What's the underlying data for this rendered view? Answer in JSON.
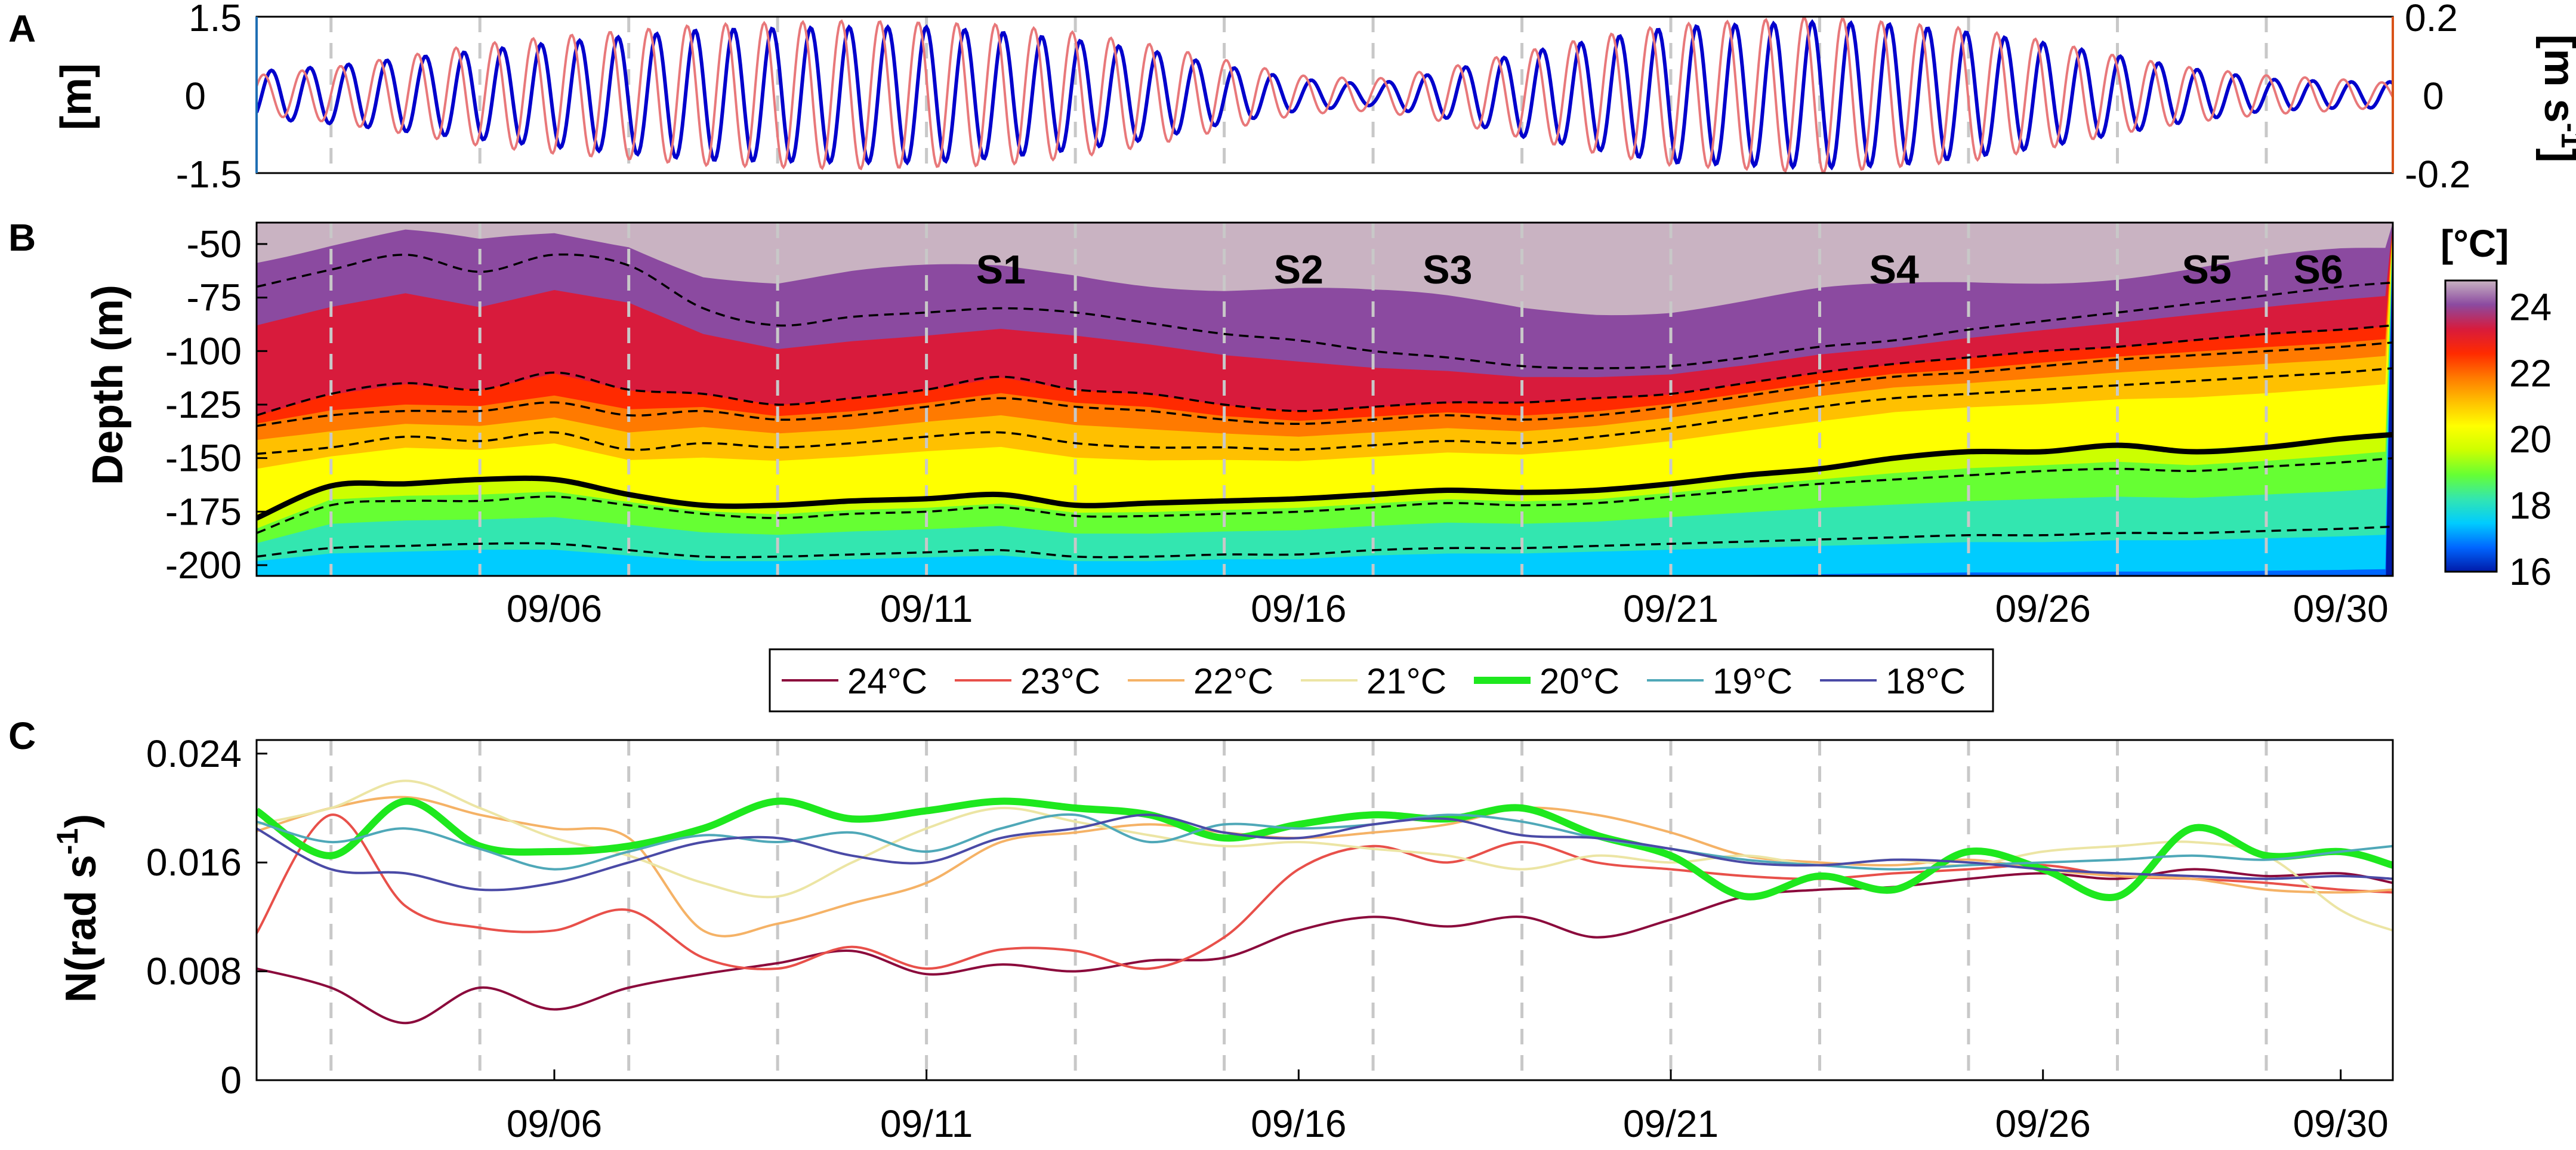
{
  "panels": {
    "a": "A",
    "b": "B",
    "c": "C"
  },
  "chart_data": [
    {
      "panel": "A",
      "type": "line",
      "y_left": {
        "label": "[m]",
        "ylim": [
          -1.5,
          1.5
        ],
        "ticks": [
          "1.5",
          "0",
          "-1.5"
        ],
        "color": "#1f6fb4"
      },
      "y_right": {
        "label": "[m s-1]",
        "label_main": "[m s",
        "label_sup": "-1",
        "label_end": "]",
        "ylim": [
          -0.2,
          0.2
        ],
        "ticks": [
          "0.2",
          "0",
          "-0.2"
        ],
        "color": "#d95319"
      },
      "xlim": [
        2,
        30.7
      ],
      "series": [
        {
          "axis": "left",
          "color": "#0000cc",
          "amplitude_envelope": [
            [
              2,
              0.45
            ],
            [
              3,
              0.55
            ],
            [
              4,
              0.7
            ],
            [
              5,
              0.85
            ],
            [
              6,
              1.0
            ],
            [
              8,
              1.25
            ],
            [
              10,
              1.3
            ],
            [
              11,
              1.3
            ],
            [
              12,
              1.2
            ],
            [
              13,
              1.05
            ],
            [
              14,
              0.85
            ],
            [
              15,
              0.55
            ],
            [
              16,
              0.3
            ],
            [
              17,
              0.2
            ],
            [
              18,
              0.45
            ],
            [
              19,
              0.8
            ],
            [
              20,
              1.05
            ],
            [
              21,
              1.3
            ],
            [
              23,
              1.4
            ],
            [
              24,
              1.35
            ],
            [
              25,
              1.2
            ],
            [
              26,
              1.0
            ],
            [
              27,
              0.75
            ],
            [
              28,
              0.5
            ],
            [
              29,
              0.3
            ],
            [
              30,
              0.25
            ],
            [
              30.7,
              0.25
            ]
          ]
        },
        {
          "axis": "right",
          "color": "#e8787a",
          "amplitude_envelope": [
            [
              2,
              0.05
            ],
            [
              3,
              0.07
            ],
            [
              4,
              0.1
            ],
            [
              5,
              0.13
            ],
            [
              6,
              0.15
            ],
            [
              8,
              0.18
            ],
            [
              10,
              0.19
            ],
            [
              12,
              0.18
            ],
            [
              13,
              0.16
            ],
            [
              14,
              0.13
            ],
            [
              15,
              0.09
            ],
            [
              16,
              0.05
            ],
            [
              17,
              0.04
            ],
            [
              18,
              0.07
            ],
            [
              19,
              0.11
            ],
            [
              20,
              0.15
            ],
            [
              21,
              0.18
            ],
            [
              23,
              0.2
            ],
            [
              25,
              0.17
            ],
            [
              26,
              0.14
            ],
            [
              27,
              0.1
            ],
            [
              28,
              0.07
            ],
            [
              29,
              0.05
            ],
            [
              30,
              0.04
            ],
            [
              30.7,
              0.03
            ]
          ]
        }
      ]
    },
    {
      "panel": "B",
      "type": "heatmap",
      "ylabel": "Depth (m)",
      "ylim": [
        -205,
        -40
      ],
      "yticks": [
        -50,
        -75,
        -100,
        -125,
        -150,
        -175,
        -200
      ],
      "xlim": [
        2,
        30.7
      ],
      "xticks": [
        {
          "day": 6,
          "label": "09/06"
        },
        {
          "day": 11,
          "label": "09/11"
        },
        {
          "day": 16,
          "label": "09/16"
        },
        {
          "day": 21,
          "label": "09/21"
        },
        {
          "day": 26,
          "label": "09/26"
        },
        {
          "day": 30,
          "label": "09/30"
        }
      ],
      "colorbar": {
        "title": "[°C]",
        "range": [
          16,
          24.8
        ],
        "ticks": [
          "24",
          "22",
          "20",
          "18",
          "16"
        ],
        "colors": [
          "#001aa8",
          "#0066ff",
          "#00ccff",
          "#33e6b0",
          "#66ff33",
          "#ccff00",
          "#ffff00",
          "#ffc000",
          "#ff7a00",
          "#ff2a00",
          "#d81b3c",
          "#8b4aa0",
          "#c9b3c2"
        ]
      },
      "isotherm_depths": {
        "days": [
          2,
          3,
          4,
          5,
          6,
          7,
          8,
          9,
          10,
          11,
          12,
          13,
          14,
          15,
          16,
          17,
          18,
          19,
          20,
          21,
          22,
          23,
          24,
          25,
          26,
          27,
          28,
          29,
          30,
          30.7
        ],
        "24": [
          -70,
          -62,
          -55,
          -63,
          -55,
          -60,
          -80,
          -88,
          -84,
          -82,
          -80,
          -82,
          -87,
          -92,
          -95,
          -100,
          -103,
          -107,
          -108,
          -107,
          -103,
          -98,
          -95,
          -90,
          -86,
          -82,
          -78,
          -74,
          -70,
          -68
        ],
        "23": [
          -130,
          -120,
          -115,
          -118,
          -110,
          -118,
          -120,
          -125,
          -122,
          -118,
          -112,
          -118,
          -120,
          -125,
          -128,
          -126,
          -124,
          -124,
          -122,
          -120,
          -115,
          -110,
          -106,
          -103,
          -100,
          -98,
          -95,
          -92,
          -90,
          -88
        ],
        "22": [
          -135,
          -130,
          -128,
          -128,
          -124,
          -130,
          -128,
          -132,
          -130,
          -126,
          -122,
          -126,
          -128,
          -132,
          -134,
          -132,
          -130,
          -132,
          -130,
          -126,
          -121,
          -116,
          -112,
          -110,
          -107,
          -104,
          -102,
          -100,
          -98,
          -96
        ],
        "21": [
          -148,
          -145,
          -140,
          -142,
          -138,
          -146,
          -143,
          -145,
          -143,
          -140,
          -138,
          -143,
          -145,
          -145,
          -146,
          -144,
          -142,
          -143,
          -140,
          -136,
          -131,
          -126,
          -122,
          -120,
          -118,
          -116,
          -114,
          -112,
          -110,
          -108
        ],
        "20": [
          -178,
          -163,
          -162,
          -160,
          -160,
          -167,
          -172,
          -172,
          -170,
          -169,
          -167,
          -172,
          -171,
          -170,
          -169,
          -167,
          -165,
          -166,
          -165,
          -162,
          -158,
          -155,
          -150,
          -147,
          -147,
          -144,
          -147,
          -145,
          -141,
          -139
        ],
        "19": [
          -185,
          -172,
          -170,
          -170,
          -168,
          -172,
          -176,
          -178,
          -176,
          -175,
          -173,
          -177,
          -177,
          -176,
          -175,
          -173,
          -171,
          -172,
          -171,
          -168,
          -165,
          -162,
          -160,
          -158,
          -156,
          -155,
          -156,
          -154,
          -152,
          -150
        ],
        "18": [
          -196,
          -192,
          -191,
          -190,
          -190,
          -193,
          -196,
          -196,
          -195,
          -194,
          -193,
          -196,
          -196,
          -195,
          -195,
          -193,
          -192,
          -192,
          -191,
          -190,
          -189,
          -188,
          -187,
          -186,
          -186,
          -185,
          -185,
          -184,
          -183,
          -182
        ]
      },
      "annotations": [
        {
          "label": "S1",
          "day": 12.0
        },
        {
          "label": "S2",
          "day": 16.0
        },
        {
          "label": "S3",
          "day": 18.0
        },
        {
          "label": "S4",
          "day": 24.0
        },
        {
          "label": "S5",
          "day": 28.2
        },
        {
          "label": "S6",
          "day": 29.7
        }
      ]
    },
    {
      "panel": "C",
      "type": "line",
      "ylabel": "N(rad s-1)",
      "ylabel_main": "N(rad s",
      "ylabel_sup": "-1",
      "ylabel_end": ")",
      "ylim": [
        0,
        0.025
      ],
      "yticks": [
        "0.024",
        "0.016",
        "0.008",
        "0"
      ],
      "xlim": [
        2,
        30.7
      ],
      "xticks": [
        {
          "day": 6,
          "label": "09/06"
        },
        {
          "day": 11,
          "label": "09/11"
        },
        {
          "day": 16,
          "label": "09/16"
        },
        {
          "day": 21,
          "label": "09/21"
        },
        {
          "day": 26,
          "label": "09/26"
        },
        {
          "day": 30,
          "label": "09/30"
        }
      ],
      "x": [
        2,
        3,
        4,
        5,
        6,
        7,
        8,
        9,
        10,
        11,
        12,
        13,
        14,
        15,
        16,
        17,
        18,
        19,
        20,
        21,
        22,
        23,
        24,
        25,
        26,
        27,
        28,
        29,
        30,
        30.7
      ],
      "series": [
        {
          "name": "24°C",
          "color": "#8b0a3c",
          "width": 4,
          "values": [
            0.0082,
            0.0068,
            0.0042,
            0.0068,
            0.0052,
            0.0068,
            0.0078,
            0.0086,
            0.0095,
            0.0078,
            0.0085,
            0.008,
            0.0088,
            0.009,
            0.011,
            0.012,
            0.0113,
            0.012,
            0.0105,
            0.0118,
            0.0135,
            0.014,
            0.0142,
            0.0148,
            0.0152,
            0.0148,
            0.0155,
            0.015,
            0.0152,
            0.0145
          ]
        },
        {
          "name": "23°C",
          "color": "#e8504a",
          "width": 4,
          "values": [
            0.0108,
            0.0195,
            0.0128,
            0.0112,
            0.011,
            0.0125,
            0.009,
            0.0082,
            0.0098,
            0.0082,
            0.0096,
            0.0095,
            0.0082,
            0.0105,
            0.0155,
            0.0172,
            0.016,
            0.0175,
            0.016,
            0.0155,
            0.015,
            0.0148,
            0.0152,
            0.0155,
            0.0158,
            0.015,
            0.0148,
            0.0145,
            0.014,
            0.0138
          ]
        },
        {
          "name": "22°C",
          "color": "#f5b266",
          "width": 4,
          "values": [
            0.0183,
            0.02,
            0.0208,
            0.0195,
            0.0185,
            0.0178,
            0.011,
            0.0115,
            0.013,
            0.0145,
            0.0175,
            0.0182,
            0.0188,
            0.0182,
            0.0178,
            0.0182,
            0.0188,
            0.02,
            0.0195,
            0.0182,
            0.0165,
            0.016,
            0.0158,
            0.0162,
            0.0155,
            0.015,
            0.0148,
            0.014,
            0.0138,
            0.014
          ]
        },
        {
          "name": "21°C",
          "color": "#ece5a4",
          "width": 4,
          "values": [
            0.0188,
            0.02,
            0.022,
            0.02,
            0.0178,
            0.0165,
            0.0145,
            0.0135,
            0.016,
            0.0185,
            0.02,
            0.019,
            0.018,
            0.0172,
            0.0175,
            0.017,
            0.0165,
            0.0155,
            0.0165,
            0.016,
            0.0165,
            0.0158,
            0.0162,
            0.0158,
            0.0168,
            0.0172,
            0.0175,
            0.0165,
            0.0125,
            0.011
          ]
        },
        {
          "name": "20°C",
          "color": "#1ee81e",
          "width": 12,
          "values": [
            0.0198,
            0.0165,
            0.0205,
            0.0172,
            0.0168,
            0.0172,
            0.0185,
            0.0205,
            0.0192,
            0.0198,
            0.0205,
            0.02,
            0.0195,
            0.0178,
            0.0188,
            0.0195,
            0.0192,
            0.02,
            0.018,
            0.0165,
            0.0135,
            0.015,
            0.014,
            0.0168,
            0.0155,
            0.0135,
            0.0185,
            0.0165,
            0.0168,
            0.0158
          ]
        },
        {
          "name": "19°C",
          "color": "#4fa8b8",
          "width": 4,
          "values": [
            0.019,
            0.0175,
            0.0185,
            0.017,
            0.0155,
            0.0168,
            0.018,
            0.0175,
            0.0182,
            0.0168,
            0.0185,
            0.0195,
            0.0175,
            0.0188,
            0.0185,
            0.0188,
            0.0195,
            0.019,
            0.0178,
            0.017,
            0.0162,
            0.0158,
            0.0155,
            0.0158,
            0.016,
            0.0162,
            0.0165,
            0.0162,
            0.0168,
            0.0172
          ]
        },
        {
          "name": "18°C",
          "color": "#4a4aa6",
          "width": 4,
          "values": [
            0.0185,
            0.0155,
            0.0152,
            0.014,
            0.0145,
            0.016,
            0.0175,
            0.0178,
            0.0165,
            0.016,
            0.0178,
            0.0185,
            0.0195,
            0.0182,
            0.0178,
            0.0188,
            0.0192,
            0.018,
            0.0178,
            0.017,
            0.016,
            0.0158,
            0.0162,
            0.016,
            0.0155,
            0.0152,
            0.015,
            0.0148,
            0.015,
            0.0148
          ]
        }
      ]
    }
  ],
  "vertical_dashed_day_positions": [
    3,
    5,
    7,
    9,
    11,
    13,
    15,
    17,
    19,
    21,
    23,
    25,
    27,
    29
  ]
}
